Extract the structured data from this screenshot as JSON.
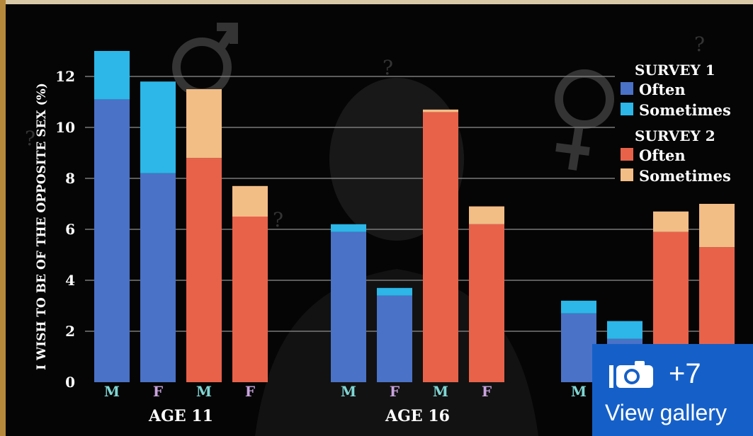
{
  "chart_data": {
    "type": "bar",
    "stacked": true,
    "ylabel": "I WISH TO BE OF THE OPPOSITE SEX (%)",
    "ylim": [
      0,
      13
    ],
    "yticks": [
      0,
      2,
      4,
      6,
      8,
      10,
      12
    ],
    "grid": true,
    "legend_position": "top-right",
    "groups": [
      {
        "label": "AGE 11",
        "bars": [
          {
            "label": "M",
            "survey": "SURVEY 1",
            "often": 11.1,
            "sometimes": 1.9
          },
          {
            "label": "F",
            "survey": "SURVEY 1",
            "often": 8.2,
            "sometimes": 3.6
          },
          {
            "label": "M",
            "survey": "SURVEY 2",
            "often": 8.8,
            "sometimes": 2.7
          },
          {
            "label": "F",
            "survey": "SURVEY 2",
            "often": 6.5,
            "sometimes": 1.2
          }
        ]
      },
      {
        "label": "AGE 16",
        "bars": [
          {
            "label": "M",
            "survey": "SURVEY 1",
            "often": 5.9,
            "sometimes": 0.3
          },
          {
            "label": "F",
            "survey": "SURVEY 1",
            "often": 3.4,
            "sometimes": 0.3
          },
          {
            "label": "M",
            "survey": "SURVEY 2",
            "often": 10.6,
            "sometimes": 0.1
          },
          {
            "label": "F",
            "survey": "SURVEY 2",
            "often": 6.2,
            "sometimes": 0.7
          }
        ]
      },
      {
        "label": "",
        "bars": [
          {
            "label": "M",
            "survey": "SURVEY 1",
            "often": 2.7,
            "sometimes": 0.5
          },
          {
            "label": "",
            "survey": "SURVEY 1",
            "often": 1.7,
            "sometimes": 0.7
          },
          {
            "label": "",
            "survey": "SURVEY 2",
            "often": 5.9,
            "sometimes": 0.8
          },
          {
            "label": "",
            "survey": "SURVEY 2",
            "often": 5.3,
            "sometimes": 1.7
          }
        ]
      }
    ],
    "legend": [
      {
        "title": "SURVEY 1",
        "entries": [
          {
            "name": "Often",
            "color": "#4a72c6"
          },
          {
            "name": "Sometimes",
            "color": "#2cb7e8"
          }
        ]
      },
      {
        "title": "SURVEY 2",
        "entries": [
          {
            "name": "Often",
            "color": "#e8624a"
          },
          {
            "name": "Sometimes",
            "color": "#f3bd86"
          }
        ]
      }
    ],
    "colors": {
      "survey1_often": "#4a72c6",
      "survey1_sometimes": "#2cb7e8",
      "survey2_often": "#e8624a",
      "survey2_sometimes": "#f3bd86",
      "label_male": "#7fd6d4",
      "label_female": "#c9a3de"
    }
  },
  "gallery": {
    "count": "+7",
    "label": "View gallery",
    "icon": "camera-icon"
  }
}
